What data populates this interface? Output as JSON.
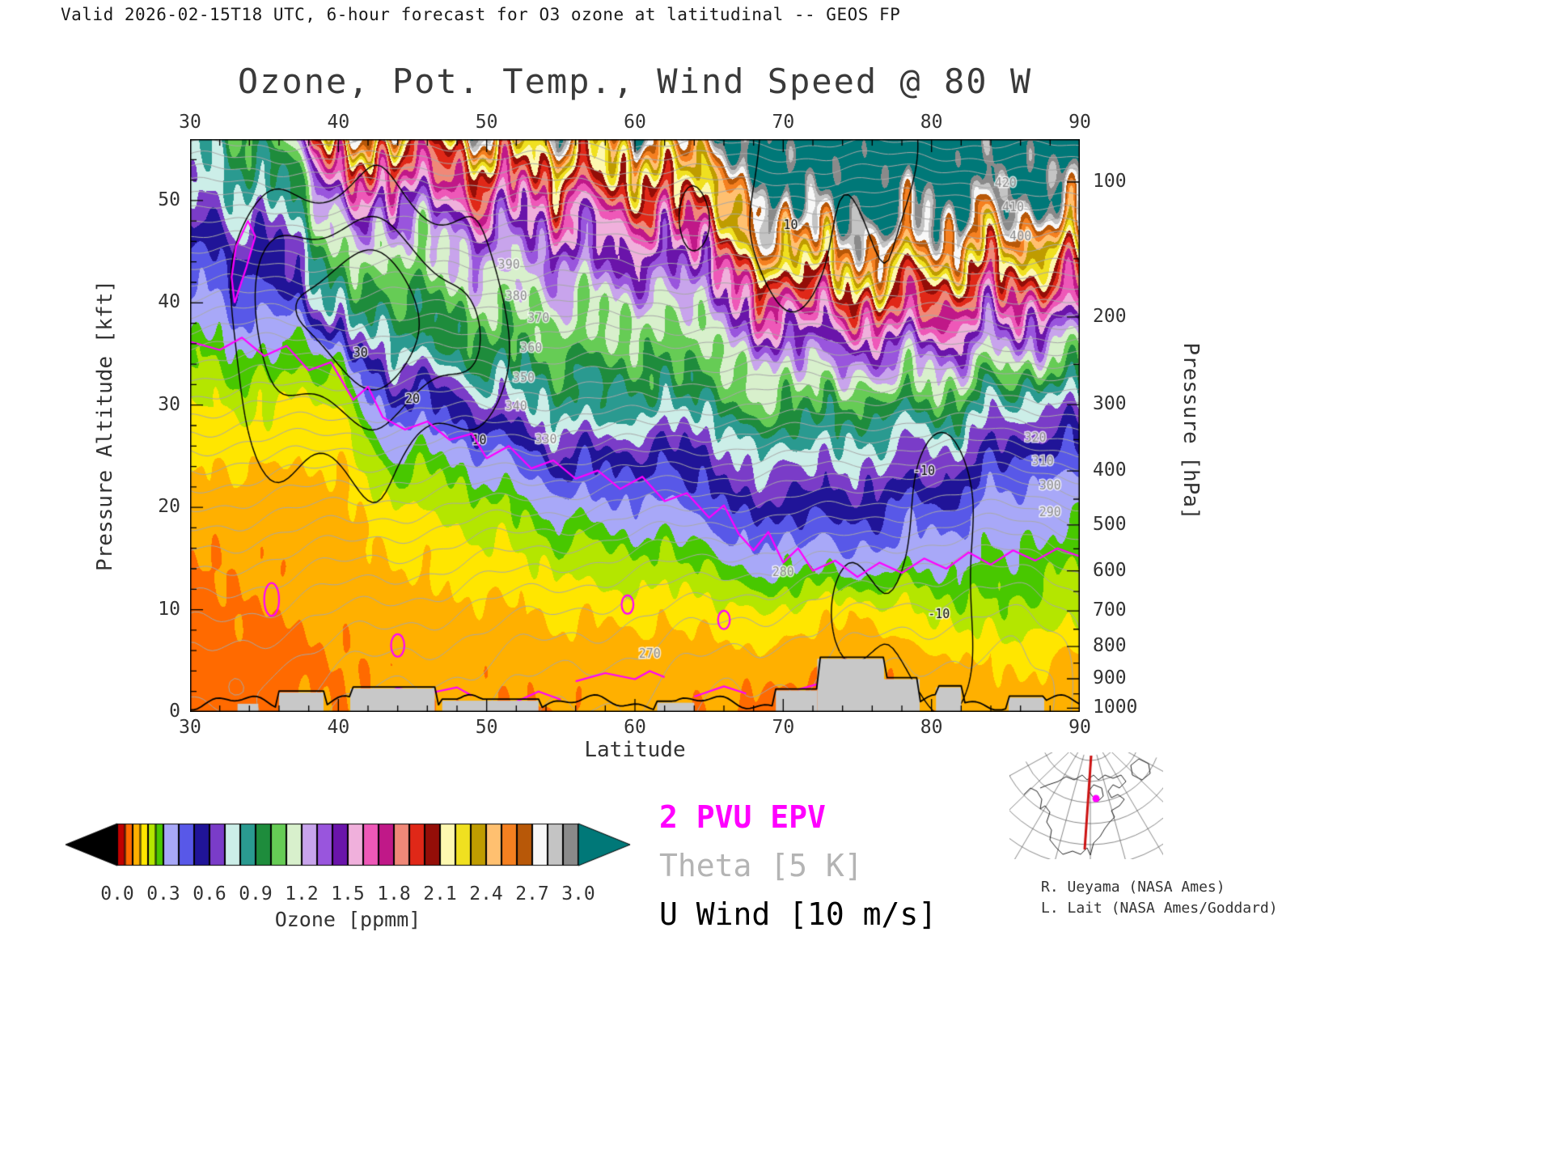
{
  "header": {
    "valid_line": "Valid 2026-02-15T18 UTC, 6-hour forecast for O3 ozone at latitudinal -- GEOS FP"
  },
  "chart_data": {
    "type": "heatmap",
    "title": "Ozone, Pot. Temp., Wind Speed @ 80 W",
    "x_axis": {
      "label": "Latitude",
      "min": 30,
      "max": 90,
      "major_ticks": [
        30,
        40,
        50,
        60,
        70,
        80,
        90
      ],
      "minor_step": 2,
      "mirrored_top": true
    },
    "y_axis_left": {
      "label": "Pressure Altitude [kft]",
      "min": 0,
      "max": 56,
      "major_ticks": [
        0,
        10,
        20,
        30,
        40,
        50
      ],
      "minor_step": 2
    },
    "y_axis_right": {
      "label": "Pressure [hPa]",
      "major_ticks": [
        100,
        200,
        300,
        400,
        500,
        600,
        700,
        800,
        900,
        1000
      ],
      "scale": "standard_atmosphere"
    },
    "colorbar": {
      "label": "Ozone [ppmm]",
      "units": "ppmm",
      "tick_labels": [
        "0.0",
        "0.3",
        "0.6",
        "0.9",
        "1.2",
        "1.5",
        "1.8",
        "2.1",
        "2.4",
        "2.7",
        "3.0"
      ],
      "levels": [
        0.0,
        0.05,
        0.1,
        0.15,
        0.2,
        0.25,
        0.3,
        0.4,
        0.5,
        0.6,
        0.7,
        0.8,
        0.9,
        1.0,
        1.1,
        1.2,
        1.3,
        1.4,
        1.5,
        1.6,
        1.7,
        1.8,
        1.9,
        2.0,
        2.1,
        2.2,
        2.3,
        2.4,
        2.5,
        2.6,
        2.7,
        2.8,
        2.9,
        3.0
      ],
      "colors": [
        "#c00000",
        "#ff6a00",
        "#ffb000",
        "#ffe600",
        "#b4e600",
        "#48c800",
        "#a8a8f8",
        "#5858e8",
        "#201498",
        "#7a3cc8",
        "#cceee8",
        "#2a9a90",
        "#1e8c3c",
        "#66cc55",
        "#d8f0cc",
        "#c8a4ec",
        "#9955dd",
        "#6a14aa",
        "#f0b0dc",
        "#ee58b8",
        "#c01888",
        "#f08878",
        "#e02818",
        "#940e08",
        "#fdf8b0",
        "#f0e020",
        "#bf9c00",
        "#ffc070",
        "#f58020",
        "#b85808",
        "#f8f8f8",
        "#c4c4c4",
        "#8a8a8a"
      ],
      "under_color": "#000000",
      "over_color": "#007878"
    },
    "ozone_field": {
      "units": "ppmm",
      "lats": [
        30,
        35,
        40,
        45,
        50,
        55,
        60,
        65,
        70,
        75,
        80,
        85,
        90
      ],
      "alts_kft": [
        0,
        5,
        10,
        15,
        20,
        25,
        30,
        35,
        40,
        45,
        50,
        55,
        58
      ],
      "values": [
        [
          0.08,
          0.08,
          0.09,
          0.1,
          0.12,
          0.16,
          0.2,
          0.26,
          0.38,
          0.5,
          0.72,
          0.78,
          0.8
        ],
        [
          0.09,
          0.09,
          0.1,
          0.11,
          0.13,
          0.17,
          0.22,
          0.3,
          0.45,
          0.55,
          0.75,
          0.95,
          1.1
        ],
        [
          0.1,
          0.1,
          0.11,
          0.12,
          0.13,
          0.15,
          0.18,
          0.28,
          0.8,
          1.05,
          1.3,
          1.9,
          2.7
        ],
        [
          0.11,
          0.11,
          0.13,
          0.16,
          0.2,
          0.3,
          0.5,
          0.85,
          1.0,
          1.15,
          1.5,
          2.1,
          2.8
        ],
        [
          0.1,
          0.11,
          0.14,
          0.18,
          0.24,
          0.4,
          0.7,
          0.95,
          1.1,
          1.25,
          1.6,
          2.2,
          2.85
        ],
        [
          0.1,
          0.12,
          0.16,
          0.21,
          0.3,
          0.5,
          0.8,
          1.0,
          1.15,
          1.35,
          1.7,
          2.3,
          2.9
        ],
        [
          0.12,
          0.12,
          0.17,
          0.24,
          0.38,
          0.58,
          0.88,
          1.02,
          1.18,
          1.45,
          1.85,
          2.4,
          2.95
        ],
        [
          0.1,
          0.12,
          0.18,
          0.28,
          0.48,
          0.62,
          0.92,
          1.08,
          1.25,
          1.65,
          2.15,
          2.7,
          3.02
        ],
        [
          0.08,
          0.12,
          0.2,
          0.32,
          0.52,
          0.72,
          0.98,
          1.25,
          1.75,
          2.45,
          3.05,
          3.2,
          3.25
        ],
        [
          0.07,
          0.1,
          0.16,
          0.38,
          0.58,
          0.78,
          1.02,
          1.4,
          1.95,
          2.65,
          3.1,
          3.25,
          3.3
        ],
        [
          0.1,
          0.13,
          0.22,
          0.32,
          0.48,
          0.68,
          0.95,
          1.35,
          1.85,
          2.55,
          3.08,
          3.22,
          3.3
        ],
        [
          0.12,
          0.16,
          0.24,
          0.29,
          0.33,
          0.48,
          0.72,
          1.15,
          1.65,
          2.25,
          2.95,
          3.18,
          3.28
        ],
        [
          0.1,
          0.15,
          0.22,
          0.27,
          0.34,
          0.52,
          0.78,
          1.2,
          1.7,
          2.35,
          3.0,
          3.2,
          3.3
        ]
      ]
    },
    "overlays": {
      "epv": {
        "label": "2 PVU EPV",
        "color": "#ff00ff",
        "interval": "2 PVU",
        "tropopause_line": [
          [
            30,
            36.2
          ],
          [
            32,
            35.4
          ],
          [
            33.5,
            36.6
          ],
          [
            35,
            34.8
          ],
          [
            36.5,
            35.8
          ],
          [
            38,
            33.4
          ],
          [
            39.5,
            34.2
          ],
          [
            41,
            30.5
          ],
          [
            42,
            31.8
          ],
          [
            43,
            28.8
          ],
          [
            44.5,
            27.6
          ],
          [
            46,
            28.4
          ],
          [
            47.5,
            26.6
          ],
          [
            49,
            27.2
          ],
          [
            50,
            24.8
          ],
          [
            51.5,
            26.0
          ],
          [
            53,
            23.8
          ],
          [
            54.5,
            24.6
          ],
          [
            56,
            22.8
          ],
          [
            57.5,
            23.6
          ],
          [
            59,
            21.8
          ],
          [
            60.5,
            23.0
          ],
          [
            62,
            20.6
          ],
          [
            63.5,
            21.4
          ],
          [
            65,
            19.0
          ],
          [
            66,
            20.2
          ],
          [
            67,
            17.4
          ],
          [
            68,
            15.8
          ],
          [
            69,
            17.6
          ],
          [
            70,
            14.6
          ],
          [
            71,
            16.0
          ],
          [
            72,
            13.8
          ],
          [
            73.5,
            14.8
          ],
          [
            75,
            13.2
          ],
          [
            76.5,
            14.6
          ],
          [
            78,
            13.6
          ],
          [
            79.5,
            15.0
          ],
          [
            81,
            14.0
          ],
          [
            82.5,
            15.6
          ],
          [
            84,
            14.4
          ],
          [
            85.5,
            15.8
          ],
          [
            87,
            14.8
          ],
          [
            88.5,
            16.0
          ],
          [
            90,
            15.2
          ]
        ],
        "aloft_loop": [
          [
            33,
            40
          ],
          [
            33.8,
            43.5
          ],
          [
            34.4,
            46.5
          ],
          [
            33.9,
            48
          ],
          [
            33.1,
            45.5
          ],
          [
            32.8,
            42.5
          ],
          [
            33,
            40
          ]
        ],
        "surface_lines": [
          [
            [
              42,
              1.5
            ],
            [
              44,
              2.3
            ],
            [
              46,
              1.8
            ],
            [
              48,
              2.4
            ],
            [
              49,
              1.6
            ]
          ],
          [
            [
              52,
              1.0
            ],
            [
              53.5,
              2.0
            ],
            [
              55,
              1.2
            ]
          ],
          [
            [
              56,
              3.0
            ],
            [
              58,
              3.8
            ],
            [
              60,
              3.2
            ],
            [
              61,
              4.0
            ],
            [
              62,
              3.4
            ]
          ],
          [
            [
              64,
              1.5
            ],
            [
              66,
              2.5
            ],
            [
              67.5,
              1.8
            ]
          ],
          [
            [
              71,
              2.2
            ],
            [
              73,
              3.0
            ],
            [
              74.5,
              2.4
            ]
          ]
        ],
        "blobs": [
          [
            35.5,
            11,
            0.5,
            1.6
          ],
          [
            44,
            6.5,
            0.45,
            1.1
          ],
          [
            59.5,
            10.5,
            0.4,
            0.9
          ],
          [
            66,
            9,
            0.4,
            0.9
          ]
        ]
      },
      "theta": {
        "label": "Theta [5 K]",
        "color": "#a8a8a8",
        "interval_k": 5,
        "contour_labels": [
          270,
          280,
          290,
          300,
          310,
          320,
          330,
          340,
          350,
          360,
          370,
          380,
          390,
          400,
          410,
          420
        ]
      },
      "wind": {
        "label": "U Wind [10 m/s]",
        "color": "#000000",
        "interval_ms": 10,
        "contour_labels": [
          30,
          20,
          10,
          -10
        ],
        "negative_style": "dashed"
      }
    },
    "terrain_kft": [
      [
        33.2,
        34.6,
        0.8
      ],
      [
        36,
        39,
        1.9
      ],
      [
        40.8,
        46.5,
        2.3
      ],
      [
        47,
        53.5,
        1.1
      ],
      [
        61.5,
        64,
        0.9
      ],
      [
        69.5,
        72.3,
        2.1
      ],
      [
        72.3,
        76.8,
        5.2
      ],
      [
        76.8,
        79.2,
        3.2
      ],
      [
        80.3,
        82,
        2.4
      ],
      [
        85.2,
        87.6,
        1.4
      ]
    ],
    "legend": [
      {
        "text": "2 PVU EPV",
        "color": "#ff00ff"
      },
      {
        "text": "Theta [5 K]",
        "color": "#b4b4b4"
      },
      {
        "text": "U Wind [10 m/s]",
        "color": "#000000"
      }
    ],
    "credits": [
      "R. Ueyama (NASA Ames)",
      "L. Lait (NASA Ames/Goddard)"
    ],
    "inset_map": {
      "cross_section_line_color": "#cc1111",
      "profile_marker_color": "#ff00ff"
    }
  }
}
